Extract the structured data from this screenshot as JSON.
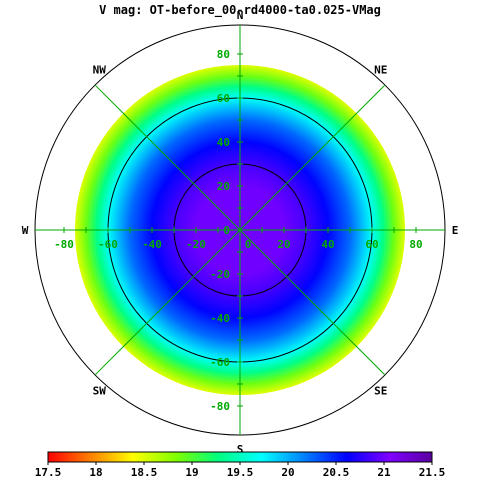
{
  "chart_data": {
    "type": "polar-heatmap",
    "title": "V mag: OT-before_00-rd4000-ta0.025-VMag",
    "compass": [
      "N",
      "NE",
      "E",
      "SE",
      "S",
      "SW",
      "W",
      "NW"
    ],
    "x_tick_labels": [
      "-80",
      "-60",
      "-40",
      "-20",
      "0",
      "20",
      "40",
      "60",
      "80"
    ],
    "y_tick_labels": [
      "80",
      "60",
      "40",
      "20",
      "0",
      "-20",
      "-40",
      "-60",
      "-80"
    ],
    "grid_color": "#00aa00",
    "data_radius_deg": 75,
    "field": [
      {
        "zenith_deg": 0,
        "vmag": 21.0
      },
      {
        "zenith_deg": 20,
        "vmag": 21.0
      },
      {
        "zenith_deg": 30,
        "vmag": 20.85
      },
      {
        "zenith_deg": 40,
        "vmag": 20.6
      },
      {
        "zenith_deg": 50,
        "vmag": 20.25
      },
      {
        "zenith_deg": 60,
        "vmag": 19.7
      },
      {
        "zenith_deg": 65,
        "vmag": 19.3
      },
      {
        "zenith_deg": 70,
        "vmag": 18.9
      },
      {
        "zenith_deg": 75,
        "vmag": 18.5
      }
    ],
    "colorbar": {
      "min": 17.5,
      "max": 21.5,
      "tick_labels": [
        "17.5",
        "18",
        "18.5",
        "19",
        "19.5",
        "20",
        "20.5",
        "21",
        "21.5"
      ],
      "stops": [
        "#ff0000",
        "#ff8000",
        "#ffff00",
        "#80ff00",
        "#00ff80",
        "#00ffff",
        "#0080ff",
        "#0000ff",
        "#8000ff",
        "#5a00a0"
      ]
    }
  }
}
